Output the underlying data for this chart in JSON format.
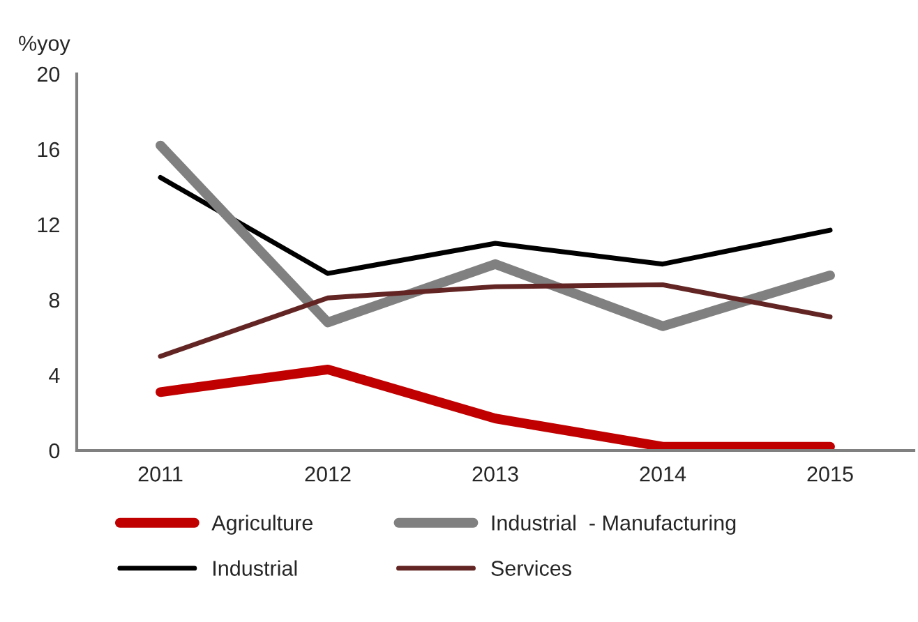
{
  "chart_data": {
    "type": "line",
    "ylabel": "%yoy",
    "categories": [
      "2011",
      "2012",
      "2013",
      "2014",
      "2015"
    ],
    "series": [
      {
        "name": "Agriculture",
        "color": "#c00000",
        "values": [
          3.1,
          4.3,
          1.7,
          0.2,
          0.2
        ]
      },
      {
        "name": "Industrial",
        "color": "#000000",
        "values": [
          14.5,
          9.4,
          11.0,
          9.9,
          11.7
        ]
      },
      {
        "name": "Industrial  - Manufacturing",
        "color": "#808080",
        "values": [
          16.2,
          6.8,
          9.9,
          6.6,
          9.3
        ]
      },
      {
        "name": "Services",
        "color": "#632523",
        "values": [
          5.0,
          8.1,
          8.7,
          8.8,
          7.1
        ]
      }
    ],
    "ylim": [
      0,
      20
    ],
    "yticks": [
      0,
      4,
      8,
      12,
      16,
      20
    ],
    "grid": false,
    "legend": "bottom",
    "marker": "none",
    "line_style": "solid"
  }
}
